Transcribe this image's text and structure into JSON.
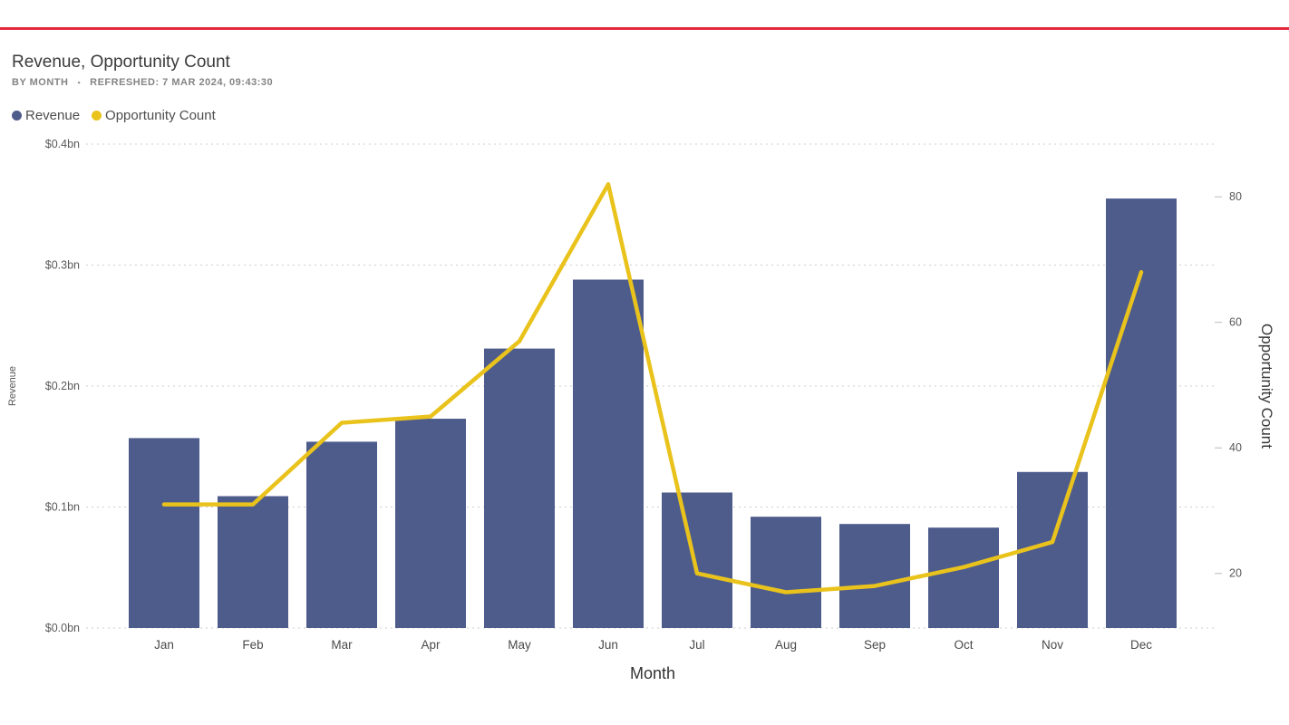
{
  "accent": {
    "top_divider_color": "#e2293e"
  },
  "header": {
    "title": "Revenue, Opportunity Count",
    "subtitle_by": "BY MONTH",
    "subtitle_sep": "•",
    "subtitle_refreshed": "REFRESHED: 7 MAR 2024, 09:43:30"
  },
  "legend": [
    {
      "label": "Revenue",
      "color": "#4e5c8c"
    },
    {
      "label": "Opportunity Count",
      "color": "#e9c31c"
    }
  ],
  "chart_data": {
    "type": "combo-bar-line",
    "title": "Revenue, Opportunity Count",
    "xlabel": "Month",
    "grid": "dotted-horizontal",
    "legend_position": "top-left",
    "categories": [
      "Jan",
      "Feb",
      "Mar",
      "Apr",
      "May",
      "Jun",
      "Jul",
      "Aug",
      "Sep",
      "Oct",
      "Nov",
      "Dec"
    ],
    "series": [
      {
        "name": "Revenue",
        "type": "bar",
        "axis": "left",
        "color": "#4e5c8c",
        "unit": "$bn",
        "values": [
          0.157,
          0.109,
          0.154,
          0.173,
          0.231,
          0.288,
          0.112,
          0.092,
          0.086,
          0.083,
          0.129,
          0.355
        ]
      },
      {
        "name": "Opportunity Count",
        "type": "line",
        "axis": "right",
        "color": "#e9c31c",
        "values": [
          31,
          31,
          44,
          45,
          57,
          82,
          20,
          17,
          18,
          21,
          25,
          68
        ]
      }
    ],
    "left_axis": {
      "label": "Revenue",
      "min": 0,
      "max": 0.4,
      "ticks": [
        {
          "label": "$0.0bn",
          "value": 0
        },
        {
          "label": "$0.1bn",
          "value": 0.1
        },
        {
          "label": "$0.2bn",
          "value": 0.2
        },
        {
          "label": "$0.3bn",
          "value": 0.3
        },
        {
          "label": "$0.4bn",
          "value": 0.4
        }
      ]
    },
    "right_axis": {
      "label": "Opportunity Count",
      "min": 11.3,
      "max": 88.4,
      "ticks": [
        {
          "label": "20",
          "value": 20
        },
        {
          "label": "40",
          "value": 40
        },
        {
          "label": "60",
          "value": 60
        },
        {
          "label": "80",
          "value": 80
        }
      ]
    }
  }
}
